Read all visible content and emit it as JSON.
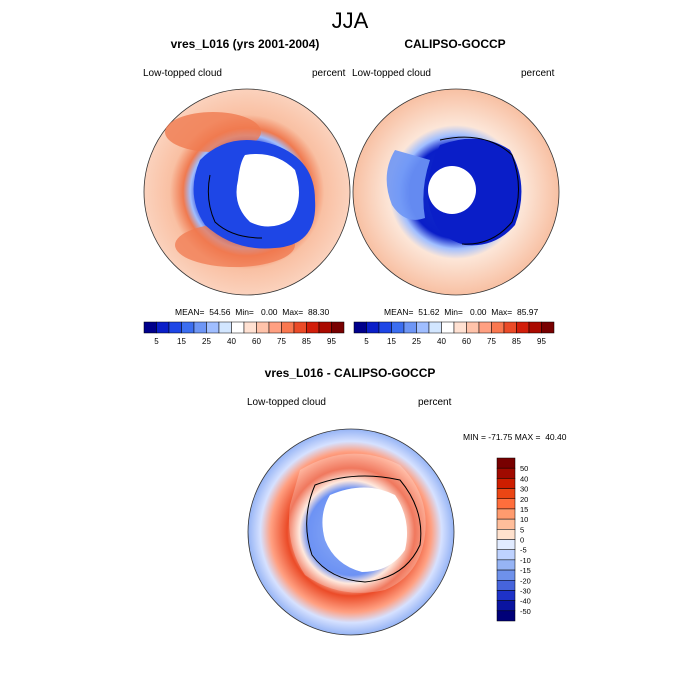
{
  "main_title": "JJA",
  "panel1": {
    "title": "vres_L016 (yrs 2001-2004)",
    "left_label": "Low-topped cloud",
    "right_label": "percent",
    "stats": "MEAN=  54.56  Min=   0.00  Max=  88.30"
  },
  "panel2": {
    "title": "CALIPSO-GOCCP",
    "left_label": "Low-topped cloud",
    "right_label": "percent",
    "stats": "MEAN=  51.62  Min=   0.00  Max=  85.97"
  },
  "panel3": {
    "title": "vres_L016 - CALIPSO-GOCCP",
    "left_label": "Low-topped cloud",
    "right_label": "percent",
    "minmax": "MIN = -71.75 MAX =  40.40"
  },
  "colorbar_abs": {
    "labels": [
      "5",
      "15",
      "25",
      "40",
      "60",
      "75",
      "85",
      "95"
    ],
    "colors": [
      "#00008b",
      "#0a1ec8",
      "#1e46e6",
      "#3c6ef0",
      "#6e96f5",
      "#a0beff",
      "#d2e6ff",
      "#ffffff",
      "#ffe1d2",
      "#ffc3aa",
      "#ffa082",
      "#fa7850",
      "#eb4b28",
      "#d21e0a",
      "#aa0a00",
      "#780000"
    ]
  },
  "colorbar_diff": {
    "labels": [
      "50",
      "40",
      "30",
      "20",
      "15",
      "10",
      "5",
      "0",
      "-5",
      "-10",
      "-15",
      "-20",
      "-30",
      "-40",
      "-50"
    ],
    "colors": [
      "#780000",
      "#a00a00",
      "#cd1e00",
      "#eb4614",
      "#ff6e3c",
      "#ff9b6e",
      "#ffbe9b",
      "#ffe1cd",
      "#e1ebff",
      "#bed2ff",
      "#96b4f5",
      "#6e91eb",
      "#4664dc",
      "#1e32c8",
      "#0a14a0",
      "#000078"
    ]
  },
  "maps": {
    "model_abs": {
      "ocean_mid": "#f9c0a3",
      "high_band": "#f07a50",
      "ice_edge": "#1e46e6",
      "inner_fill": "#3a6bf0"
    },
    "obs_abs": {
      "ocean_mid": "#fad0b8",
      "ice_band": "#1433c8",
      "coastal": "#a0beff"
    },
    "diff": {
      "ring_pos": "#eb4b28",
      "outer": "#d6e1ff",
      "inner": "#6e96f5"
    }
  }
}
